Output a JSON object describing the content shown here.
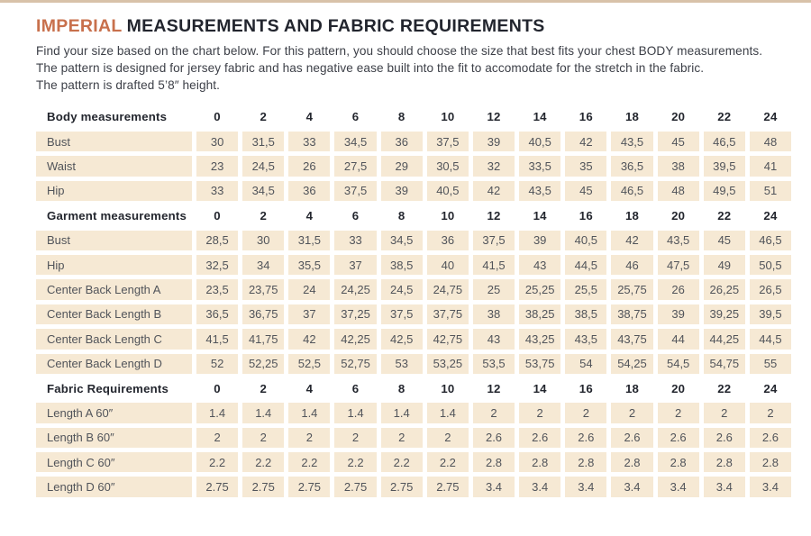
{
  "header": {
    "title_highlight": "IMPERIAL",
    "title_rest": "MEASUREMENTS AND FABRIC REQUIREMENTS",
    "intro_lines": [
      "Find your size based on the chart below. For this pattern, you should choose the size that best fits your chest BODY measurements.",
      "The pattern is designed for jersey fabric and has negative ease built into the fit to accomodate for the stretch in the fabric.",
      "The pattern is drafted 5’8″ height."
    ]
  },
  "colors": {
    "accent_orange": "#c8704c",
    "top_strip": "#d8c2a9",
    "cell_background": "#f6e9d4",
    "header_text": "#23262e",
    "cell_text": "#51545a"
  },
  "chart_data": {
    "type": "table",
    "title": "Imperial measurements and fabric requirements",
    "sizes": [
      "0",
      "2",
      "4",
      "6",
      "8",
      "10",
      "12",
      "14",
      "16",
      "18",
      "20",
      "22",
      "24"
    ],
    "sections": [
      {
        "header": "Body measurements",
        "rows": [
          {
            "label": "Bust",
            "values": [
              "30",
              "31,5",
              "33",
              "34,5",
              "36",
              "37,5",
              "39",
              "40,5",
              "42",
              "43,5",
              "45",
              "46,5",
              "48"
            ]
          },
          {
            "label": "Waist",
            "values": [
              "23",
              "24,5",
              "26",
              "27,5",
              "29",
              "30,5",
              "32",
              "33,5",
              "35",
              "36,5",
              "38",
              "39,5",
              "41"
            ]
          },
          {
            "label": "Hip",
            "values": [
              "33",
              "34,5",
              "36",
              "37,5",
              "39",
              "40,5",
              "42",
              "43,5",
              "45",
              "46,5",
              "48",
              "49,5",
              "51"
            ]
          }
        ]
      },
      {
        "header": "Garment measurements",
        "rows": [
          {
            "label": "Bust",
            "values": [
              "28,5",
              "30",
              "31,5",
              "33",
              "34,5",
              "36",
              "37,5",
              "39",
              "40,5",
              "42",
              "43,5",
              "45",
              "46,5"
            ]
          },
          {
            "label": "Hip",
            "values": [
              "32,5",
              "34",
              "35,5",
              "37",
              "38,5",
              "40",
              "41,5",
              "43",
              "44,5",
              "46",
              "47,5",
              "49",
              "50,5"
            ]
          },
          {
            "label": "Center Back Length A",
            "values": [
              "23,5",
              "23,75",
              "24",
              "24,25",
              "24,5",
              "24,75",
              "25",
              "25,25",
              "25,5",
              "25,75",
              "26",
              "26,25",
              "26,5"
            ]
          },
          {
            "label": "Center Back Length B",
            "values": [
              "36,5",
              "36,75",
              "37",
              "37,25",
              "37,5",
              "37,75",
              "38",
              "38,25",
              "38,5",
              "38,75",
              "39",
              "39,25",
              "39,5"
            ]
          },
          {
            "label": "Center Back Length C",
            "values": [
              "41,5",
              "41,75",
              "42",
              "42,25",
              "42,5",
              "42,75",
              "43",
              "43,25",
              "43,5",
              "43,75",
              "44",
              "44,25",
              "44,5"
            ]
          },
          {
            "label": "Center Back Length D",
            "values": [
              "52",
              "52,25",
              "52,5",
              "52,75",
              "53",
              "53,25",
              "53,5",
              "53,75",
              "54",
              "54,25",
              "54,5",
              "54,75",
              "55"
            ]
          }
        ]
      },
      {
        "header": "Fabric Requirements",
        "rows": [
          {
            "label": "Length A 60″",
            "values": [
              "1.4",
              "1.4",
              "1.4",
              "1.4",
              "1.4",
              "1.4",
              "2",
              "2",
              "2",
              "2",
              "2",
              "2",
              "2"
            ]
          },
          {
            "label": "Length B 60″",
            "values": [
              "2",
              "2",
              "2",
              "2",
              "2",
              "2",
              "2.6",
              "2.6",
              "2.6",
              "2.6",
              "2.6",
              "2.6",
              "2.6"
            ]
          },
          {
            "label": "Length C 60″",
            "values": [
              "2.2",
              "2.2",
              "2.2",
              "2.2",
              "2.2",
              "2.2",
              "2.8",
              "2.8",
              "2.8",
              "2.8",
              "2.8",
              "2.8",
              "2.8"
            ]
          },
          {
            "label": "Length D 60″",
            "values": [
              "2.75",
              "2.75",
              "2.75",
              "2.75",
              "2.75",
              "2.75",
              "3.4",
              "3.4",
              "3.4",
              "3.4",
              "3.4",
              "3.4",
              "3.4"
            ]
          }
        ]
      }
    ]
  }
}
